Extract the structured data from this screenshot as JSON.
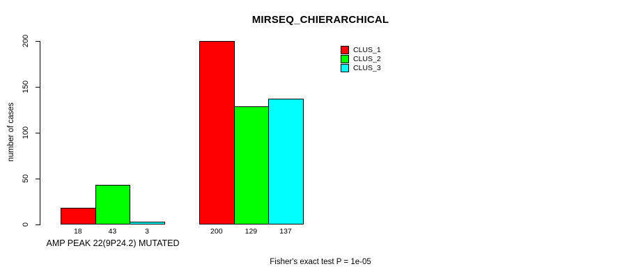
{
  "chart_data": {
    "type": "bar",
    "title": "MIRSEQ_CHIERARCHICAL",
    "ylabel": "number of cases",
    "xlabel": "AMP PEAK 22(9P24.2) MUTATED",
    "ylim": [
      0,
      200
    ],
    "yticks": [
      0,
      50,
      100,
      150,
      200
    ],
    "grid": false,
    "legend_position": "top-right",
    "categories": [
      "AMP PEAK 22(9P24.2) MUTATED",
      ""
    ],
    "series": [
      {
        "name": "CLUS_1",
        "color": "#ff0000",
        "values": [
          18,
          200
        ]
      },
      {
        "name": "CLUS_2",
        "color": "#00ff00",
        "values": [
          43,
          129
        ]
      },
      {
        "name": "CLUS_3",
        "color": "#00ffff",
        "values": [
          3,
          137
        ]
      }
    ],
    "bar_value_labels": [
      [
        "18",
        "200"
      ],
      [
        "43",
        "129"
      ],
      [
        "3",
        "137"
      ]
    ],
    "annotation": "Fisher's exact test P = 1e-05"
  },
  "colors": {
    "background": "#ffffff",
    "axis": "#000000",
    "text": "#000000",
    "bar_border": "#000000",
    "clus_1": "#ff0000",
    "clus_2": "#00ff00",
    "clus_3": "#00ffff"
  }
}
